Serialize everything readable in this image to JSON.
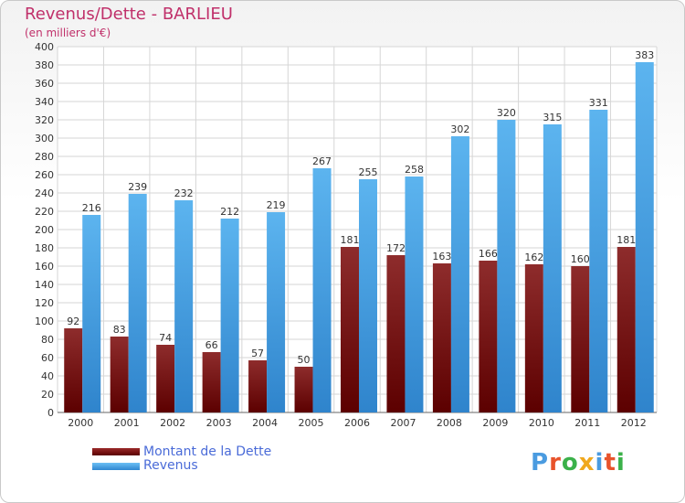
{
  "title": "Revenus/Dette - BARLIEU",
  "subtitle": "(en milliers d'€)",
  "brand": {
    "text": "Proxiti",
    "colors": [
      "#4a9be0",
      "#e8532b",
      "#3bb14a",
      "#f0a81d",
      "#4a9be0",
      "#e8532b",
      "#3bb14a"
    ]
  },
  "chart_data": {
    "type": "bar",
    "categories": [
      "2000",
      "2001",
      "2002",
      "2003",
      "2004",
      "2005",
      "2006",
      "2007",
      "2008",
      "2009",
      "2010",
      "2011",
      "2012"
    ],
    "series": [
      {
        "name": "Montant de la Dette",
        "color": "#7a1a1a",
        "values": [
          92,
          83,
          74,
          66,
          57,
          50,
          181,
          172,
          163,
          166,
          162,
          160,
          181
        ]
      },
      {
        "name": "Revenus",
        "color": "#4aa3e6",
        "values": [
          216,
          239,
          232,
          212,
          219,
          267,
          255,
          258,
          302,
          320,
          315,
          331,
          383
        ]
      }
    ],
    "ylim": [
      0,
      400
    ],
    "ytick_step": 20,
    "grid": true,
    "legend_position": "bottom-left",
    "data_labels": true
  }
}
